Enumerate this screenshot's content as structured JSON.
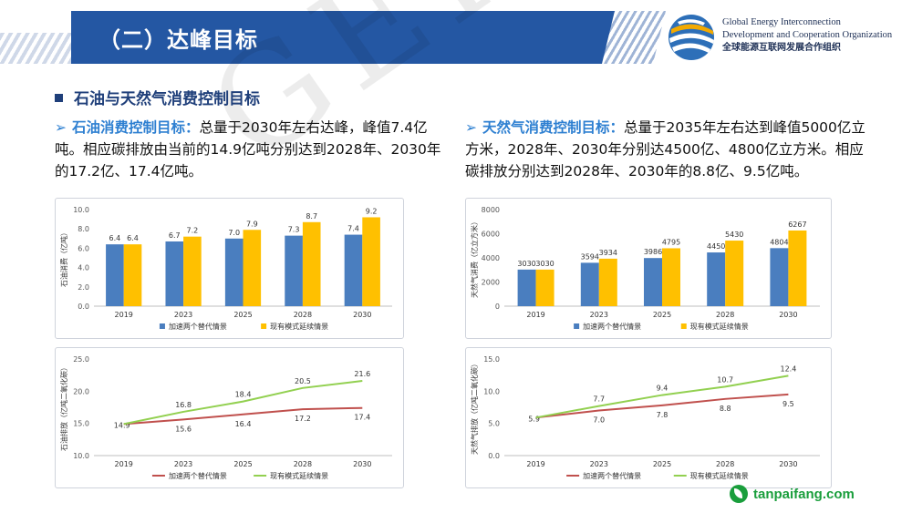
{
  "header": {
    "title": "（二）达峰目标"
  },
  "org": {
    "line1": "Global Energy Interconnection",
    "line2": "Development and Cooperation Organization",
    "line3": "全球能源互联网发展合作组织"
  },
  "section_title": "石油与天然气消费控制目标",
  "para_left": {
    "highlight": "石油消费控制目标：",
    "text": "总量于2030年左右达峰，峰值7.4亿吨。相应碳排放由当前的14.9亿吨分别达到2028年、2030年的17.2亿、17.4亿吨。"
  },
  "para_right": {
    "highlight": "天然气消费控制目标：",
    "text": "总量于2035年左右达到峰值5000亿立方米，2028年、2030年分别达4500亿、4800亿立方米。相应碳排放分别达到2028年、2030年的8.8亿、9.5亿吨。"
  },
  "watermark": "GEIDCO",
  "site": "tanpaifang.com",
  "colors": {
    "blue": "#4a7ebf",
    "yellow": "#ffc000",
    "red": "#c0504d",
    "green": "#92d050",
    "brand": "#2457a3"
  },
  "chart_data": [
    {
      "type": "bar",
      "categories": [
        "2019",
        "2023",
        "2025",
        "2028",
        "2030"
      ],
      "ylabel": "石油消费（亿吨）",
      "ylim": [
        0,
        10
      ],
      "yticks": [
        "0.0",
        "2.0",
        "4.0",
        "6.0",
        "8.0",
        "10.0"
      ],
      "series": [
        {
          "name": "加速两个替代情景",
          "values": [
            6.4,
            6.7,
            7.0,
            7.3,
            7.4
          ],
          "labels": [
            "6.4",
            "6.7",
            "7.0",
            "7.3",
            "7.4"
          ]
        },
        {
          "name": "现有模式延续情景",
          "values": [
            6.4,
            7.2,
            7.9,
            8.7,
            9.2
          ],
          "labels": [
            "6.4",
            "7.2",
            "7.9",
            "8.7",
            "9.2"
          ]
        }
      ]
    },
    {
      "type": "bar",
      "categories": [
        "2019",
        "2023",
        "2025",
        "2028",
        "2030"
      ],
      "ylabel": "天然气消费（亿立方米）",
      "ylim": [
        0,
        8000
      ],
      "yticks": [
        "0",
        "2000",
        "4000",
        "6000",
        "8000"
      ],
      "series": [
        {
          "name": "加速两个替代情景",
          "values": [
            3030,
            3594,
            3986,
            4450,
            4804
          ],
          "labels": [
            "3030",
            "3594",
            "3986",
            "4450",
            "4804"
          ]
        },
        {
          "name": "现有模式延续情景",
          "values": [
            3030,
            3934,
            4795,
            5430,
            6267
          ],
          "labels": [
            "3030",
            "3934",
            "4795",
            "5430",
            "6267"
          ]
        }
      ]
    },
    {
      "type": "line",
      "categories": [
        "2019",
        "2023",
        "2025",
        "2028",
        "2030"
      ],
      "ylabel": "石油排放（亿吨二氧化碳）",
      "ylim": [
        10,
        25
      ],
      "yticks": [
        "10.0",
        "15.0",
        "20.0",
        "25.0"
      ],
      "series": [
        {
          "name": "加速两个替代情景",
          "values": [
            14.9,
            15.6,
            16.4,
            17.2,
            17.4
          ],
          "labels": [
            "14.9",
            "15.6",
            "16.4",
            "17.2",
            "17.4"
          ]
        },
        {
          "name": "现有模式延续情景",
          "values": [
            14.9,
            16.8,
            18.4,
            20.5,
            21.6
          ],
          "labels": [
            "",
            "16.8",
            "18.4",
            "20.5",
            "21.6"
          ]
        }
      ]
    },
    {
      "type": "line",
      "categories": [
        "2019",
        "2023",
        "2025",
        "2028",
        "2030"
      ],
      "ylabel": "天然气排放（亿吨二氧化碳）",
      "ylim": [
        0,
        15
      ],
      "yticks": [
        "0.0",
        "5.0",
        "10.0",
        "15.0"
      ],
      "series": [
        {
          "name": "加速两个替代情景",
          "values": [
            5.9,
            7.0,
            7.8,
            8.8,
            9.5
          ],
          "labels": [
            "5.9",
            "7.0",
            "7.8",
            "8.8",
            "9.5"
          ]
        },
        {
          "name": "现有模式延续情景",
          "values": [
            5.9,
            7.7,
            9.4,
            10.7,
            12.4
          ],
          "labels": [
            "",
            "7.7",
            "9.4",
            "10.7",
            "12.4"
          ]
        }
      ]
    }
  ]
}
